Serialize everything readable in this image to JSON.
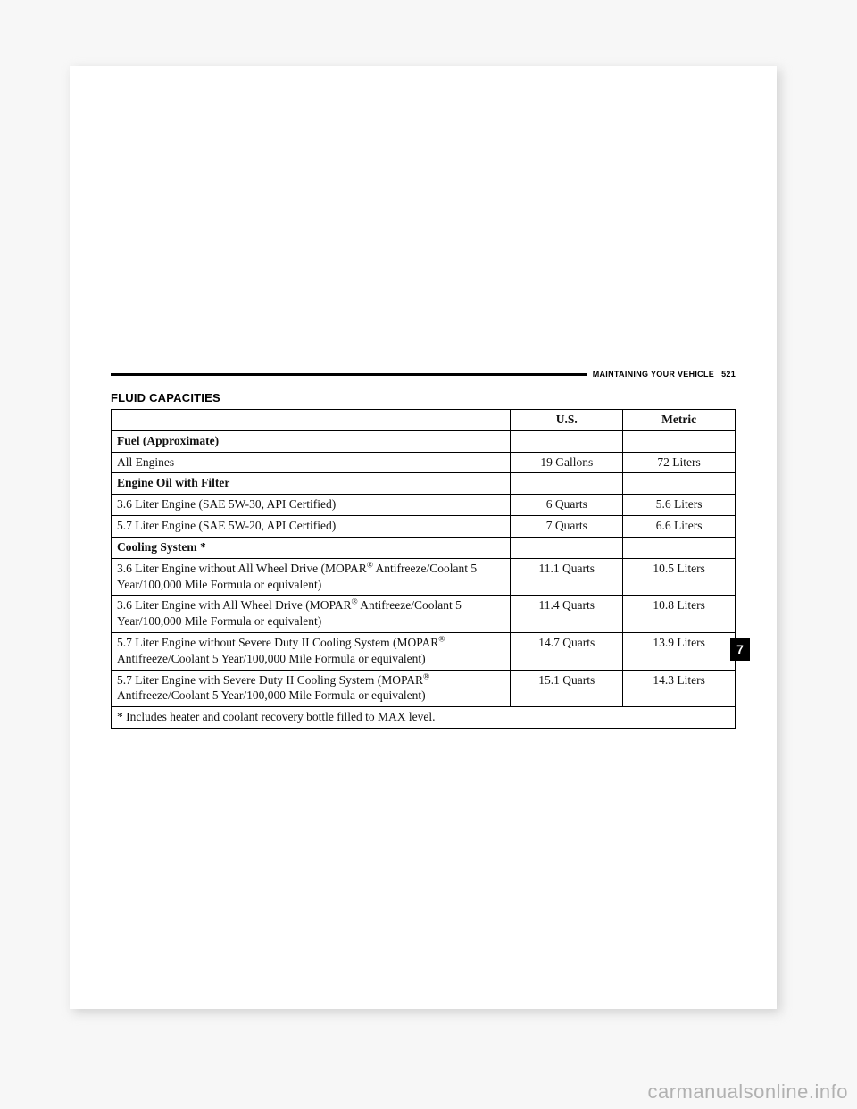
{
  "header": {
    "section_label": "MAINTAINING YOUR VEHICLE",
    "page_number": "521"
  },
  "section_title": "FLUID CAPACITIES",
  "side_tab": "7",
  "watermark": "carmanualsonline.info",
  "table": {
    "columns": {
      "desc": "",
      "us": "U.S.",
      "metric": "Metric"
    },
    "col_widths_pct": [
      64,
      18,
      18
    ],
    "border_color": "#000000",
    "font_family": "Palatino",
    "font_size_pt": 10,
    "rows": [
      {
        "type": "header",
        "desc": "Fuel (Approximate)",
        "us": "",
        "metric": ""
      },
      {
        "type": "data",
        "desc": "All Engines",
        "us": "19 Gallons",
        "metric": "72 Liters"
      },
      {
        "type": "header",
        "desc": "Engine Oil with Filter",
        "us": "",
        "metric": ""
      },
      {
        "type": "data",
        "desc": "3.6 Liter Engine (SAE 5W-30, API Certified)",
        "us": "6 Quarts",
        "metric": "5.6 Liters"
      },
      {
        "type": "data",
        "desc": "5.7 Liter Engine (SAE 5W-20, API Certified)",
        "us": "7 Quarts",
        "metric": "6.6 Liters"
      },
      {
        "type": "header",
        "desc": "Cooling System *",
        "us": "",
        "metric": ""
      },
      {
        "type": "data",
        "desc": "3.6 Liter Engine without All Wheel Drive (MOPAR® Antifreeze/Coolant 5 Year/100,000 Mile Formula or equivalent)",
        "us": "11.1 Quarts",
        "metric": "10.5 Liters"
      },
      {
        "type": "data",
        "desc": "3.6 Liter Engine with All Wheel Drive (MOPAR® Antifreeze/Coolant 5 Year/100,000 Mile Formula or equivalent)",
        "us": "11.4 Quarts",
        "metric": "10.8 Liters"
      },
      {
        "type": "data",
        "desc": "5.7 Liter Engine without Severe Duty II Cooling System (MOPAR® Antifreeze/Coolant 5 Year/100,000 Mile Formula or equivalent)",
        "us": "14.7 Quarts",
        "metric": "13.9 Liters"
      },
      {
        "type": "data",
        "desc": "5.7 Liter Engine with Severe Duty II Cooling System (MOPAR® Antifreeze/Coolant 5 Year/100,000 Mile Formula or equivalent)",
        "us": "15.1 Quarts",
        "metric": "14.3 Liters"
      },
      {
        "type": "footnote",
        "desc": "* Includes heater and coolant recovery bottle filled to MAX level.",
        "us": "",
        "metric": ""
      }
    ]
  }
}
